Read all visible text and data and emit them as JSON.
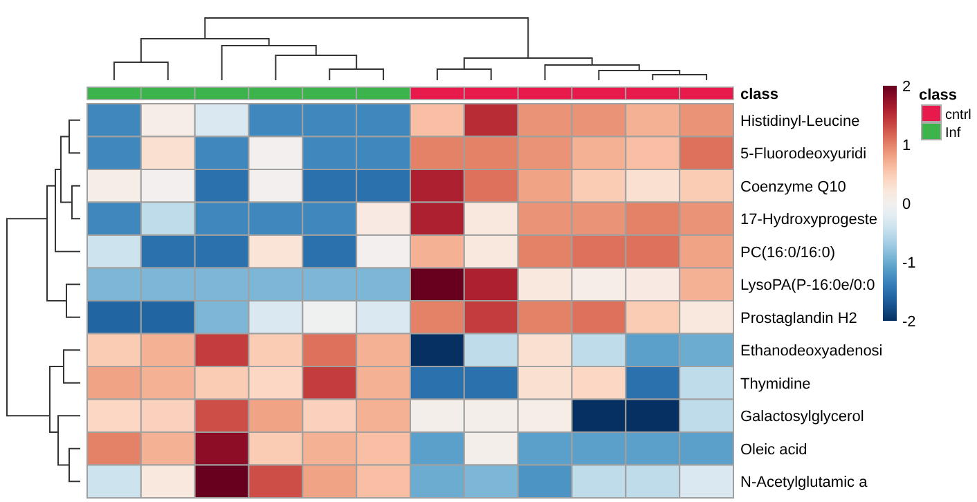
{
  "chart_data": {
    "type": "heatmap",
    "categories": [
      null,
      null,
      null,
      null,
      null,
      null,
      null,
      null,
      null,
      null,
      null,
      null
    ],
    "y_categories": [
      "class",
      "Histidinyl-Leucine",
      "5-Fluorodeoxyuridi",
      "Coenzyme Q10",
      "17-Hydroxyprogeste",
      "PC(16:0/16:0)",
      "LysoPA(P-16:0e/0:0",
      "Prostaglandin H2",
      "Ethanodeoxyadenosi",
      "Thymidine",
      "Galactosylglycerol",
      "Oleic acid",
      "N-Acetylglutamic a"
    ],
    "cells": [
      [
        null,
        null,
        null,
        null,
        null,
        null,
        null,
        null,
        null,
        null,
        null,
        null
      ],
      [
        -1.3,
        0.1,
        -0.3,
        -1.3,
        -1.3,
        -1.3,
        0.6,
        1.5,
        0.9,
        0.9,
        0.7,
        0.9
      ],
      [
        -1.3,
        0.3,
        -1.3,
        0,
        -1.3,
        -1.3,
        1.0,
        1.0,
        0.9,
        0.7,
        0.6,
        1.1
      ],
      [
        0.1,
        0,
        -1.5,
        0,
        -1.5,
        -1.5,
        1.6,
        1.1,
        0.8,
        0.5,
        0.3,
        0.5
      ],
      [
        -1.3,
        -0.5,
        -1.3,
        -1.3,
        -1.3,
        0.15,
        1.6,
        0.2,
        0.9,
        0.9,
        1.0,
        0.9
      ],
      [
        -0.4,
        -1.5,
        -1.5,
        0.25,
        -1.5,
        0,
        0.7,
        0.2,
        1.0,
        1.1,
        1.1,
        0.8
      ],
      [
        -0.9,
        -0.9,
        -0.9,
        -0.9,
        -0.9,
        -0.9,
        2.0,
        1.6,
        0.2,
        0.1,
        0.15,
        0.7
      ],
      [
        -1.6,
        -1.6,
        -0.9,
        -0.3,
        -0.05,
        -0.3,
        1.0,
        1.4,
        1.0,
        1.1,
        0.5,
        0.2
      ],
      [
        0.5,
        0.7,
        1.4,
        0.5,
        1.1,
        0.7,
        -2.0,
        -0.5,
        0.3,
        -0.5,
        -1.1,
        -1.0
      ],
      [
        0.8,
        0.7,
        0.5,
        0.4,
        1.4,
        0.7,
        -1.5,
        -1.5,
        0.3,
        0.4,
        -1.5,
        -0.5
      ],
      [
        0.4,
        0.45,
        1.3,
        0.8,
        0.45,
        0.7,
        0.05,
        0.05,
        0.1,
        -2.0,
        -2.0,
        -0.5
      ],
      [
        1.0,
        0.7,
        1.8,
        0.5,
        0.7,
        0.6,
        -1.1,
        0.05,
        -1.1,
        -1.1,
        -1.1,
        -1.1
      ],
      [
        -0.4,
        0.2,
        2.0,
        1.3,
        0.8,
        0.6,
        -1.0,
        -0.9,
        -1.2,
        -0.5,
        -0.5,
        -0.3
      ]
    ],
    "legend_title": "class",
    "colors": [
      "#3cb44b",
      "#3cb44b",
      "#3cb44b",
      "#3cb44b",
      "#3cb44b",
      "#3cb44b",
      "#e8194b",
      "#e8194b",
      "#e8194b",
      "#e8194b",
      "#e8194b",
      "#e8194b"
    ],
    "annotations": [
      "cntrl",
      "Inf"
    ],
    "clim": [
      -2,
      2
    ],
    "cticks": [
      -2,
      -1,
      0,
      1,
      2
    ]
  }
}
